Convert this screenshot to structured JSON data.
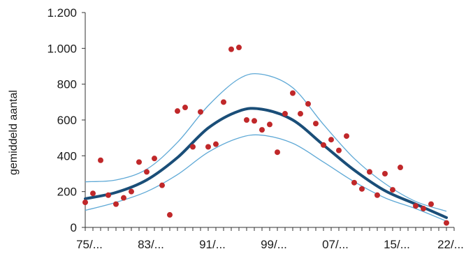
{
  "chart_data": {
    "type": "scatter",
    "ylabel": "gemiddeld aantal",
    "xlabel": "",
    "xlim": [
      1975,
      2023
    ],
    "ylim": [
      0,
      1200
    ],
    "yticks": [
      0,
      200,
      400,
      600,
      800,
      1000,
      1200
    ],
    "ytick_labels": [
      "0",
      "200",
      "400",
      "600",
      "800",
      "1.000",
      "1.200"
    ],
    "xticks": [
      1975,
      1983,
      1991,
      1999,
      2007,
      2015,
      2022
    ],
    "xtick_labels": [
      "75/...",
      "83/...",
      "91/...",
      "99/...",
      "07/...",
      "15/...",
      "22/..."
    ],
    "grid": false,
    "legend": "none",
    "colors": {
      "points": "#c0282a",
      "trend": "#1a4e78",
      "ci": "#5fa9d6",
      "axis": "#333333"
    },
    "series": [
      {
        "kind": "points",
        "points": [
          [
            1975,
            140
          ],
          [
            1976,
            190
          ],
          [
            1977,
            375
          ],
          [
            1978,
            180
          ],
          [
            1979,
            130
          ],
          [
            1980,
            165
          ],
          [
            1981,
            200
          ],
          [
            1982,
            365
          ],
          [
            1983,
            310
          ],
          [
            1984,
            385
          ],
          [
            1985,
            235
          ],
          [
            1986,
            70
          ],
          [
            1987,
            650
          ],
          [
            1988,
            670
          ],
          [
            1989,
            450
          ],
          [
            1990,
            645
          ],
          [
            1991,
            450
          ],
          [
            1992,
            465
          ],
          [
            1993,
            700
          ],
          [
            1994,
            995
          ],
          [
            1995,
            1005
          ],
          [
            1996,
            600
          ],
          [
            1997,
            595
          ],
          [
            1998,
            545
          ],
          [
            1999,
            575
          ],
          [
            2000,
            420
          ],
          [
            2001,
            635
          ],
          [
            2002,
            750
          ],
          [
            2003,
            635
          ],
          [
            2004,
            690
          ],
          [
            2005,
            580
          ],
          [
            2006,
            460
          ],
          [
            2007,
            490
          ],
          [
            2008,
            430
          ],
          [
            2009,
            510
          ],
          [
            2010,
            250
          ],
          [
            2011,
            215
          ],
          [
            2012,
            310
          ],
          [
            2013,
            180
          ],
          [
            2014,
            300
          ],
          [
            2015,
            210
          ],
          [
            2016,
            335
          ],
          [
            2018,
            120
          ],
          [
            2019,
            105
          ],
          [
            2020,
            130
          ],
          [
            2022,
            25
          ]
        ]
      },
      {
        "kind": "trend",
        "points": [
          [
            1975,
            160
          ],
          [
            1979,
            195
          ],
          [
            1983,
            265
          ],
          [
            1987,
            390
          ],
          [
            1991,
            555
          ],
          [
            1995,
            650
          ],
          [
            1998,
            660
          ],
          [
            2002,
            600
          ],
          [
            2006,
            460
          ],
          [
            2010,
            320
          ],
          [
            2014,
            205
          ],
          [
            2018,
            130
          ],
          [
            2022,
            55
          ]
        ]
      },
      {
        "kind": "upper-band",
        "points": [
          [
            1975,
            255
          ],
          [
            1979,
            265
          ],
          [
            1983,
            325
          ],
          [
            1987,
            475
          ],
          [
            1991,
            680
          ],
          [
            1995,
            830
          ],
          [
            1998,
            855
          ],
          [
            2002,
            780
          ],
          [
            2006,
            575
          ],
          [
            2010,
            385
          ],
          [
            2014,
            245
          ],
          [
            2018,
            145
          ],
          [
            2022,
            90
          ]
        ]
      },
      {
        "kind": "lower-band",
        "points": [
          [
            1975,
            95
          ],
          [
            1979,
            140
          ],
          [
            1983,
            200
          ],
          [
            1987,
            295
          ],
          [
            1991,
            420
          ],
          [
            1995,
            500
          ],
          [
            1998,
            515
          ],
          [
            2002,
            470
          ],
          [
            2006,
            365
          ],
          [
            2010,
            255
          ],
          [
            2014,
            165
          ],
          [
            2018,
            105
          ],
          [
            2022,
            35
          ]
        ]
      }
    ]
  }
}
